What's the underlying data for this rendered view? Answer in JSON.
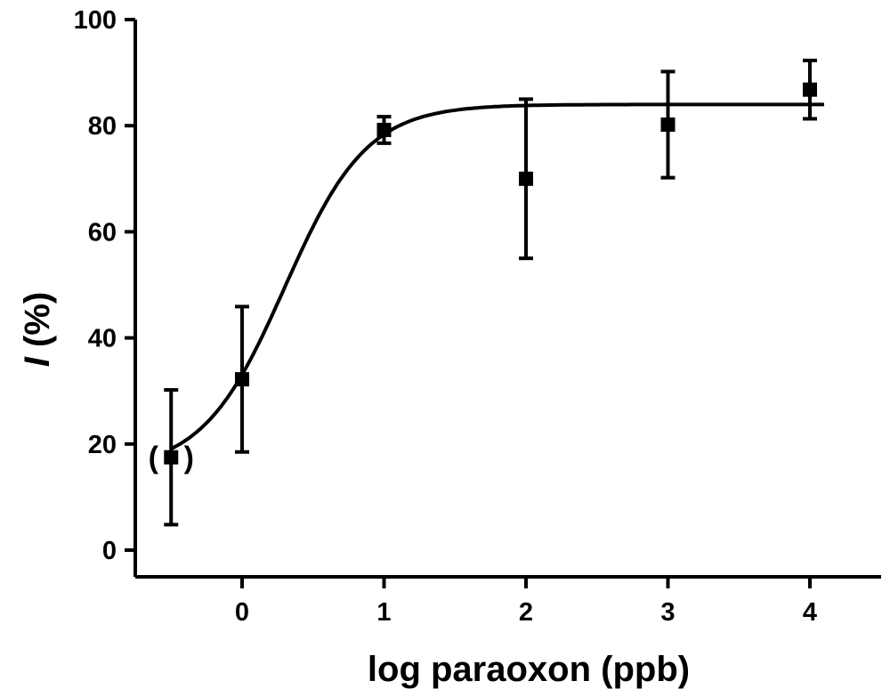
{
  "chart_data": {
    "type": "scatter",
    "xlabel": "log paraoxon (ppb)",
    "ylabel_italic": "I",
    "ylabel_rest": " (%)",
    "xlim": [
      -0.75,
      4.6
    ],
    "ylim": [
      0,
      100
    ],
    "x_ticks": [
      0,
      1,
      2,
      3,
      4
    ],
    "y_ticks": [
      0,
      20,
      40,
      60,
      80,
      100
    ],
    "x_tick_labels": [
      "0",
      "1",
      "2",
      "3",
      "4"
    ],
    "y_tick_labels": [
      "0",
      "20",
      "40",
      "60",
      "80",
      "100"
    ],
    "grid": false,
    "legend": "none",
    "series": [
      {
        "points": [
          {
            "x": -0.5,
            "y": 17.5,
            "err": 12.7
          },
          {
            "x": 0,
            "y": 32.2,
            "err": 13.7
          },
          {
            "x": 1,
            "y": 79.2,
            "err": 2.5
          },
          {
            "x": 2,
            "y": 70.0,
            "err": 15.0
          },
          {
            "x": 3,
            "y": 80.2,
            "err": 10.0
          },
          {
            "x": 4,
            "y": 86.8,
            "err": 5.5
          }
        ]
      }
    ],
    "fit_curve": {
      "type": "sigmoid",
      "bottom": 15,
      "top": 84,
      "logEC50": 0.3,
      "hill": 1.5,
      "x_range": [
        -0.5,
        4.1
      ]
    },
    "annotations": [
      {
        "text": "(",
        "attached_to_point": 0,
        "side": "left"
      },
      {
        "text": ")",
        "attached_to_point": 0,
        "side": "right"
      }
    ]
  }
}
